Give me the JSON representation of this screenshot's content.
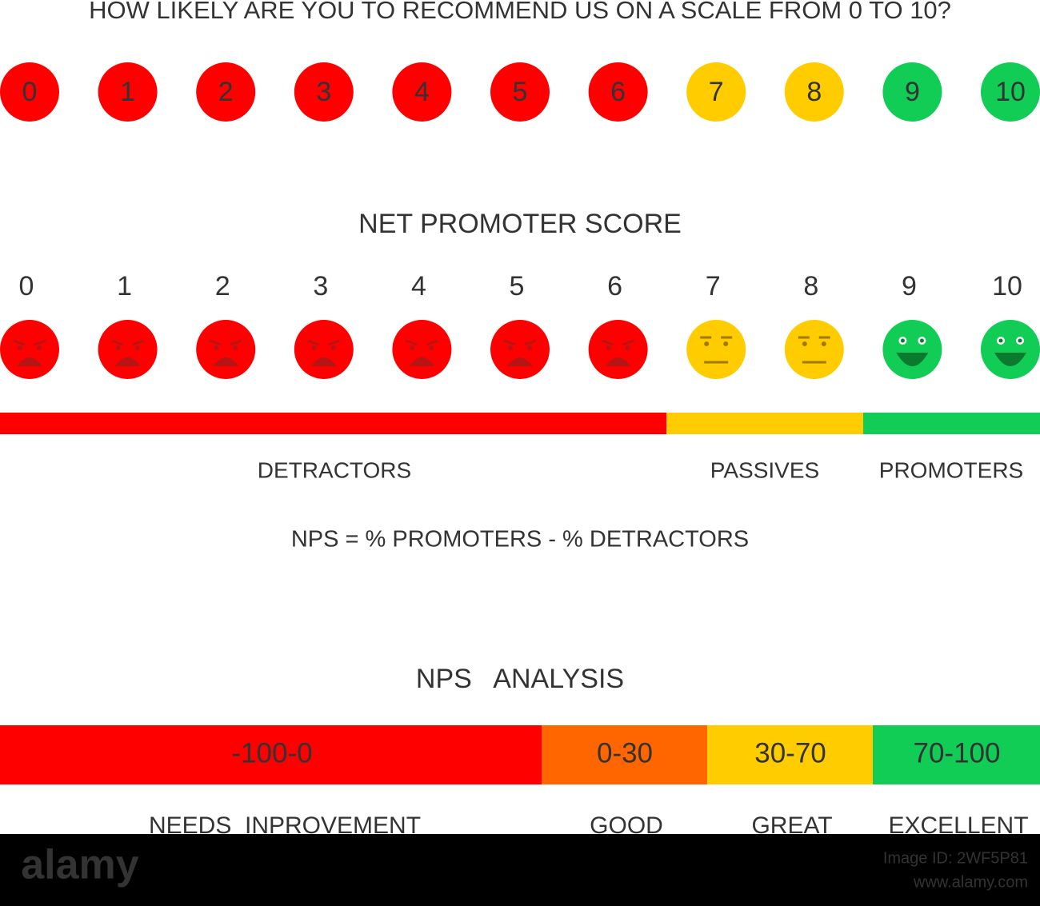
{
  "question": "HOW LIKELY ARE YOU TO RECOMMEND US ON A SCALE FROM 0 TO 10?",
  "scale": [
    {
      "label": "0",
      "color": "#ff0000"
    },
    {
      "label": "1",
      "color": "#ff0000"
    },
    {
      "label": "2",
      "color": "#ff0000"
    },
    {
      "label": "3",
      "color": "#ff0000"
    },
    {
      "label": "4",
      "color": "#ff0000"
    },
    {
      "label": "5",
      "color": "#ff0000"
    },
    {
      "label": "6",
      "color": "#ff0000"
    },
    {
      "label": "7",
      "color": "#ffcc00"
    },
    {
      "label": "8",
      "color": "#ffcc00"
    },
    {
      "label": "9",
      "color": "#11cc55"
    },
    {
      "label": "10",
      "color": "#11cc55"
    }
  ],
  "nps_title": "NET PROMOTER SCORE",
  "groups": [
    {
      "label": "DETRACTORS",
      "color": "#ff0000"
    },
    {
      "label": "PASSIVES",
      "color": "#ffcc00"
    },
    {
      "label": "PROMOTERS",
      "color": "#11cc55"
    }
  ],
  "formula": "NPS = % PROMOTERS - % DETRACTORS",
  "analysis_title": "NPS   ANALYSIS",
  "analysis": [
    {
      "range": "-100-0",
      "label": "NEEDS  INPROVEMENT",
      "color": "#ff0000"
    },
    {
      "range": "0-30",
      "label": "GOOD",
      "color": "#ff6600"
    },
    {
      "range": "30-70",
      "label": "GREAT",
      "color": "#ffcc00"
    },
    {
      "range": "70-100",
      "label": "EXCELLENT",
      "color": "#11cc55"
    }
  ],
  "watermark": {
    "brand": "alamy",
    "image_id": "Image ID: 2WF5P81",
    "url": "www.alamy.com"
  }
}
